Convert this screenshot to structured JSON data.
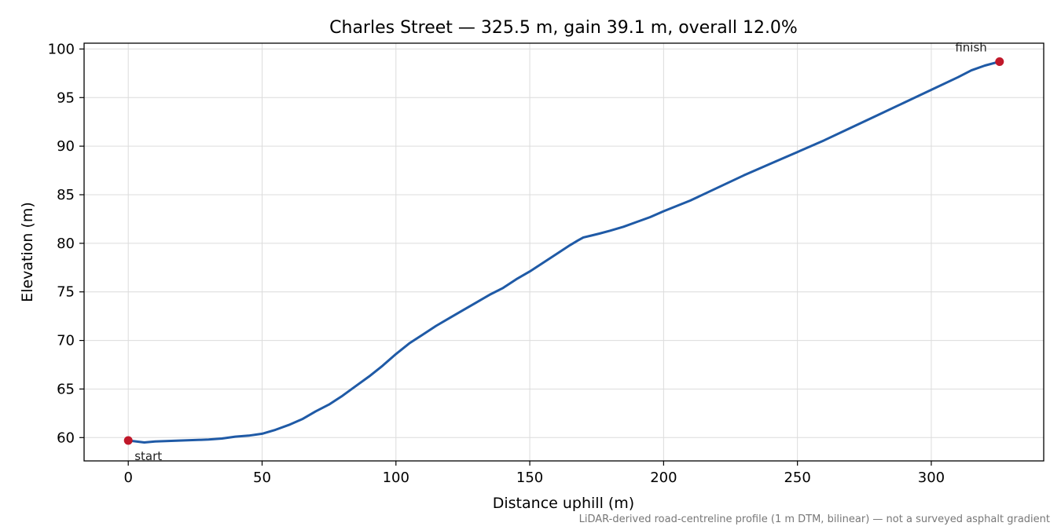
{
  "chart_data": {
    "type": "line",
    "title": "Charles Street — 325.5 m, gain 39.1 m, overall 12.0%",
    "xlabel": "Distance uphill (m)",
    "ylabel": "Elevation (m)",
    "xlim": [
      -16.5,
      342
    ],
    "ylim": [
      57.6,
      100.6
    ],
    "xticks": [
      0,
      50,
      100,
      150,
      200,
      250,
      300
    ],
    "yticks": [
      60,
      65,
      70,
      75,
      80,
      85,
      90,
      95,
      100
    ],
    "grid": true,
    "series": [
      {
        "color": "#1f5aa6",
        "x": [
          0,
          6,
          10,
          20,
          30,
          35,
          40,
          45,
          50,
          55,
          60,
          65,
          70,
          75,
          80,
          85,
          90,
          95,
          100,
          105,
          110,
          115,
          120,
          125,
          130,
          135,
          140,
          145,
          150,
          155,
          160,
          165,
          168,
          170,
          173,
          176,
          180,
          185,
          190,
          195,
          200,
          210,
          220,
          230,
          240,
          245,
          250,
          260,
          270,
          280,
          290,
          300,
          310,
          315,
          320,
          325.5
        ],
        "y": [
          59.7,
          59.5,
          59.6,
          59.7,
          59.8,
          59.9,
          60.1,
          60.2,
          60.4,
          60.8,
          61.3,
          61.9,
          62.7,
          63.4,
          64.3,
          65.3,
          66.3,
          67.4,
          68.6,
          69.7,
          70.6,
          71.5,
          72.3,
          73.1,
          73.9,
          74.7,
          75.4,
          76.3,
          77.1,
          78.0,
          78.9,
          79.8,
          80.3,
          80.6,
          80.8,
          81.0,
          81.3,
          81.7,
          82.2,
          82.7,
          83.3,
          84.4,
          85.7,
          87.0,
          88.2,
          88.8,
          89.4,
          90.6,
          91.9,
          93.2,
          94.5,
          95.8,
          97.1,
          97.8,
          98.3,
          98.7
        ]
      }
    ],
    "markers": [
      {
        "x": 0,
        "y": 59.7,
        "label": "start",
        "color": "#c0182a"
      },
      {
        "x": 325.5,
        "y": 98.7,
        "label": "finish",
        "color": "#c0182a"
      }
    ],
    "footnote": "LiDAR-derived road-centreline profile (1 m DTM, bilinear) — not a surveyed asphalt gradient"
  }
}
